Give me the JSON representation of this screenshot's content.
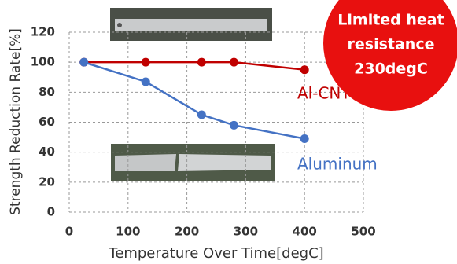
{
  "chart_data": {
    "type": "line",
    "xlabel": "Temperature Over Time[degC]",
    "ylabel": "Strength Reduction Rate[%]",
    "annotation": [
      "Limited heat",
      "resistance",
      "230degC"
    ],
    "series": [
      {
        "name": "Al-CNT",
        "color": "#c00000",
        "x": [
          25,
          130,
          225,
          280,
          400
        ],
        "values": [
          100,
          100,
          100,
          100,
          95
        ]
      },
      {
        "name": "Aluminum",
        "color": "#4472c4",
        "x": [
          25,
          130,
          225,
          280,
          400
        ],
        "values": [
          100,
          87,
          65,
          58,
          49
        ]
      }
    ],
    "xlim": [
      0,
      500
    ],
    "xticks": [
      0,
      100,
      200,
      300,
      400,
      500
    ],
    "ylim": [
      0,
      120
    ],
    "yticks": [
      0,
      20,
      40,
      60,
      80,
      100,
      120
    ],
    "grid": true
  }
}
